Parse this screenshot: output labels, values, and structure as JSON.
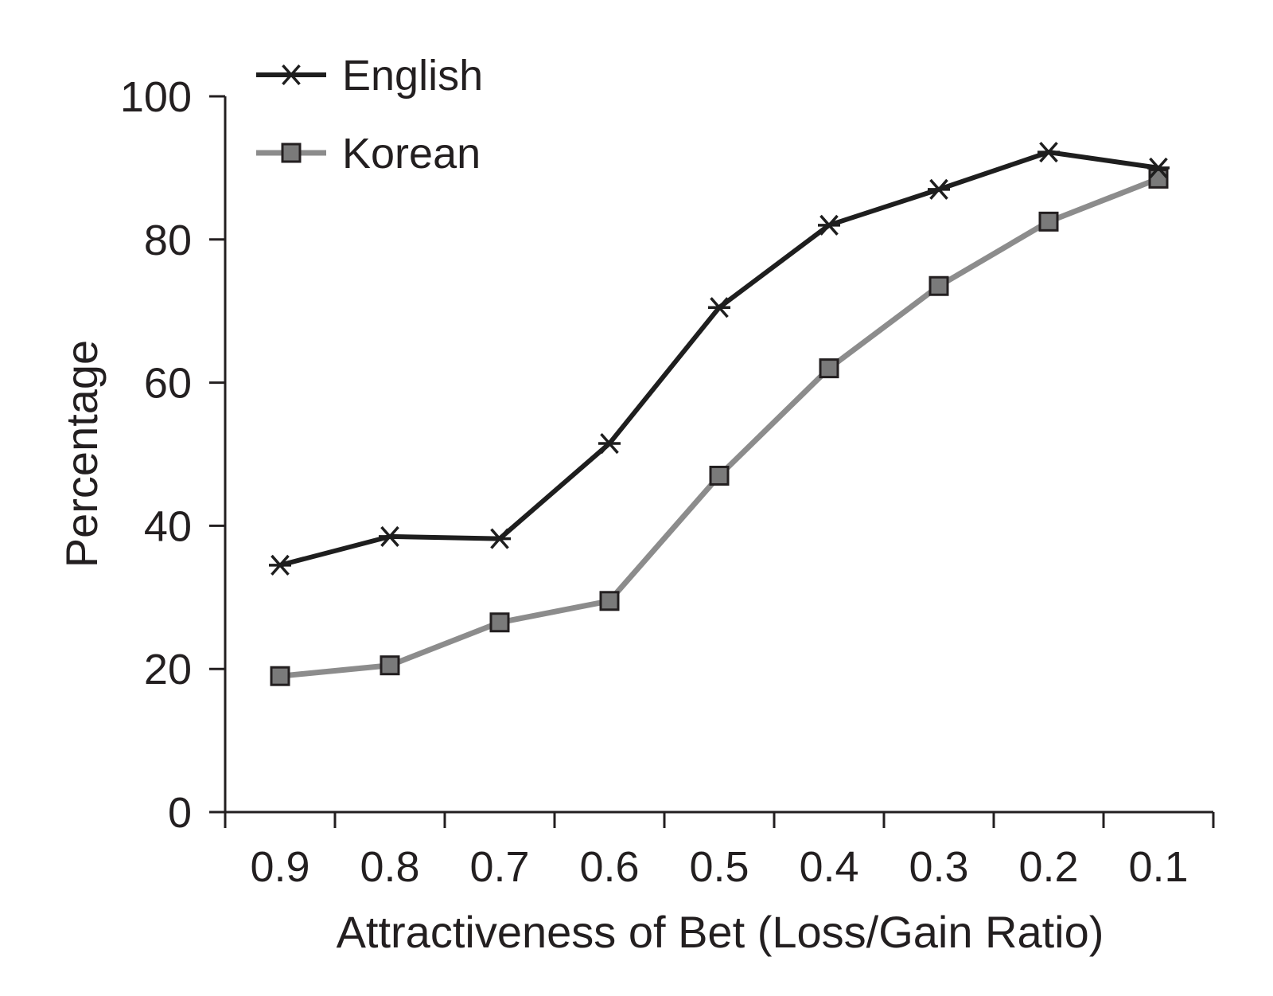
{
  "chart_data": {
    "type": "line",
    "title": "",
    "xlabel": "Attractiveness of Bet (Loss/Gain Ratio)",
    "ylabel": "Percentage",
    "categories": [
      "0.9",
      "0.8",
      "0.7",
      "0.6",
      "0.5",
      "0.4",
      "0.3",
      "0.2",
      "0.1"
    ],
    "y_ticks": [
      "0",
      "20",
      "40",
      "60",
      "80",
      "100"
    ],
    "ylim": [
      0,
      100
    ],
    "grid": false,
    "legend_position": "top-left",
    "series": [
      {
        "name": "English",
        "marker": "asterisk",
        "color": "#1e1e1e",
        "values": [
          34.5,
          38.5,
          38.2,
          51.5,
          70.5,
          82,
          87,
          92.2,
          90
        ]
      },
      {
        "name": "Korean",
        "marker": "square",
        "color": "#8c8c8c",
        "marker_fill": "#7a7a7a",
        "values": [
          19,
          20.5,
          26.5,
          29.5,
          47,
          62,
          73.5,
          82.5,
          88.5
        ]
      }
    ]
  }
}
